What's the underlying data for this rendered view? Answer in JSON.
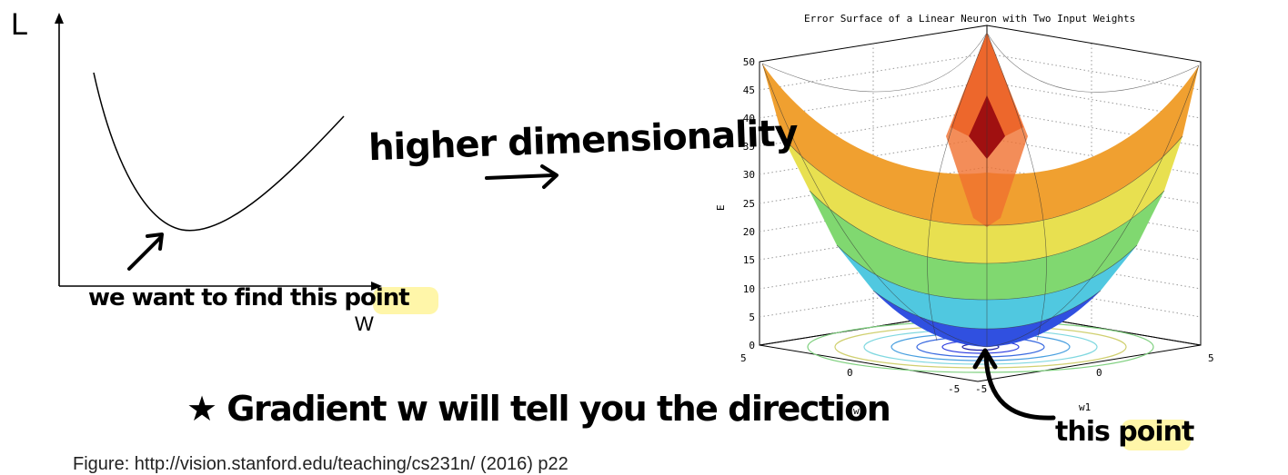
{
  "left_plot": {
    "y_label": "L",
    "x_label": "W"
  },
  "annotations": {
    "higher_dimensionality": "higher dimensionality",
    "find_point": "we want to find this point",
    "gradient_note": "★ Gradient w will tell you the direction",
    "this_point": "this point",
    "footer": "Figure: http://vision.stanford.edu/teaching/cs231n/ (2016) p22"
  },
  "surface_plot": {
    "title": "Error Surface of a Linear Neuron with Two Input Weights",
    "z_label": "E",
    "x_label": "w1",
    "y_label": "w2",
    "z_ticks": [
      "0",
      "5",
      "10",
      "15",
      "20",
      "25",
      "30",
      "35",
      "40",
      "45",
      "50"
    ],
    "w2_ticks": [
      "5",
      "0",
      "-5"
    ],
    "w1_ticks": [
      "-5",
      "0",
      "5"
    ]
  },
  "colors": {
    "highlight": "#fff59a",
    "ink": "#000000"
  }
}
